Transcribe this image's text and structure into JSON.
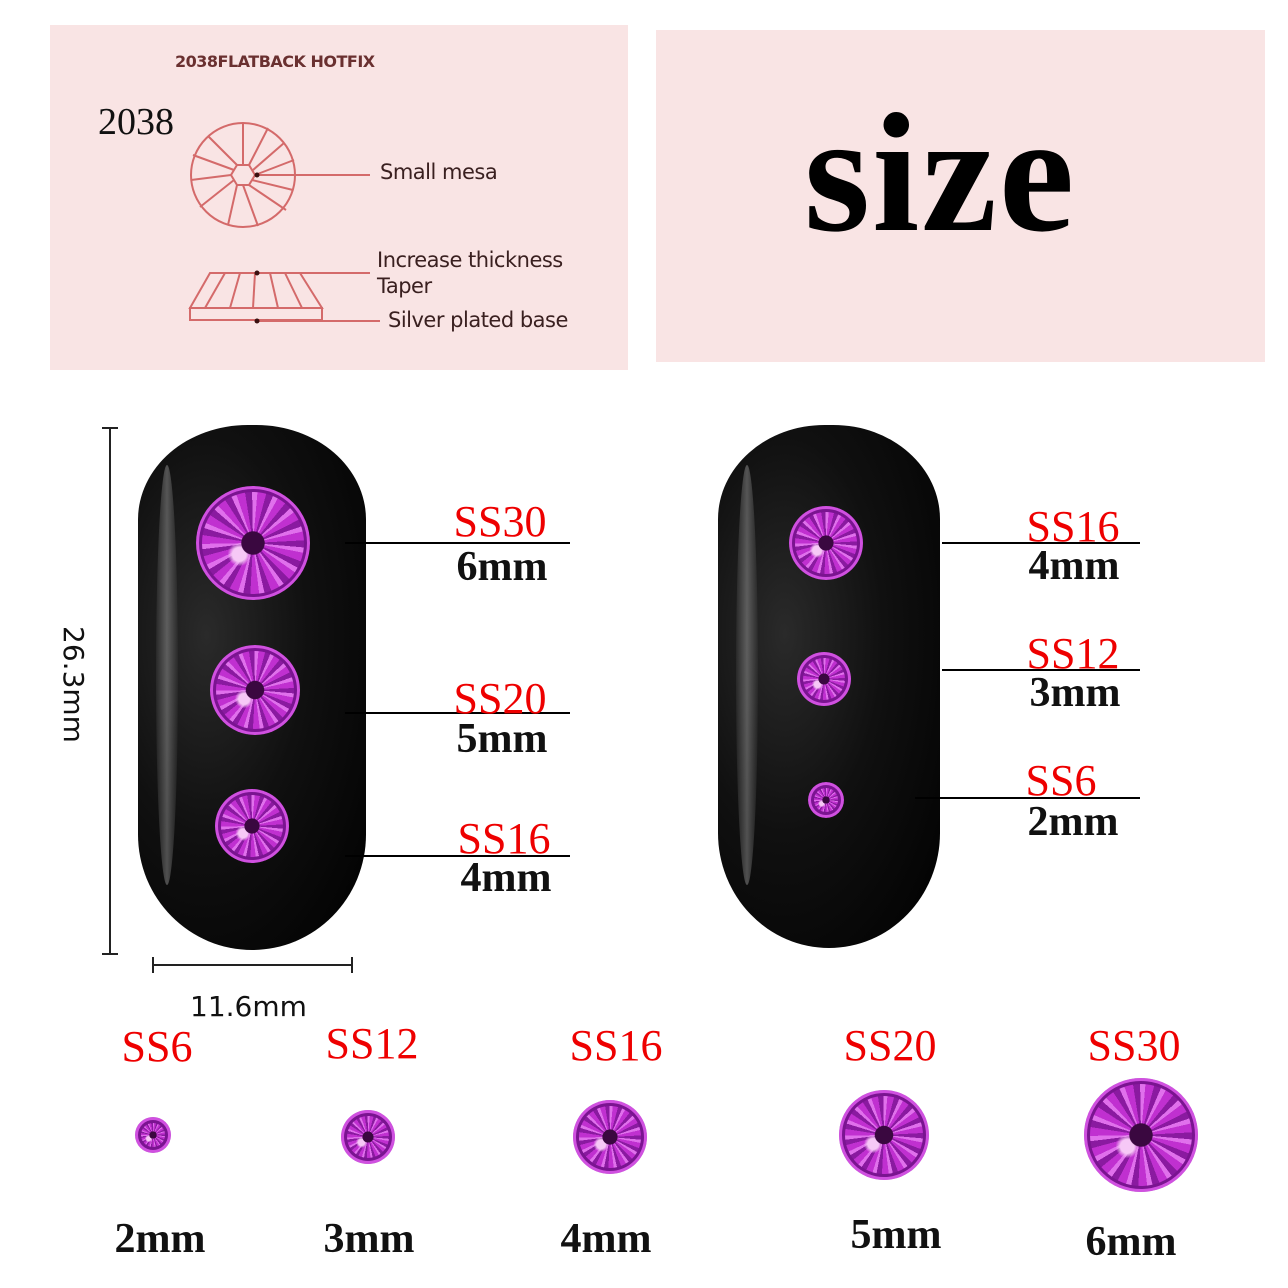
{
  "diagram": {
    "header": "2038FLATBACK HOTFIX",
    "model": "2038",
    "labels": [
      "Small mesa",
      "Increase thickness",
      "Taper",
      "Silver plated base"
    ]
  },
  "title": "size",
  "dimensions": {
    "height": "26.3mm",
    "width": "11.6mm"
  },
  "left_nail": [
    {
      "code": "SS30",
      "size": "6mm"
    },
    {
      "code": "SS20",
      "size": "5mm"
    },
    {
      "code": "SS16",
      "size": "4mm"
    }
  ],
  "right_nail": [
    {
      "code": "SS16",
      "size": "4mm"
    },
    {
      "code": "SS12",
      "size": "3mm"
    },
    {
      "code": "SS6",
      "size": "2mm"
    }
  ],
  "bottom_row": [
    {
      "code": "SS6",
      "size": "2mm"
    },
    {
      "code": "SS12",
      "size": "3mm"
    },
    {
      "code": "SS16",
      "size": "4mm"
    },
    {
      "code": "SS20",
      "size": "5mm"
    },
    {
      "code": "SS30",
      "size": "6mm"
    }
  ],
  "colors": {
    "label_red": "#ee0000",
    "gem_purple": "#b02ac0",
    "panel_pink": "#f9e4e4",
    "diagram_line": "#d46a6a"
  }
}
